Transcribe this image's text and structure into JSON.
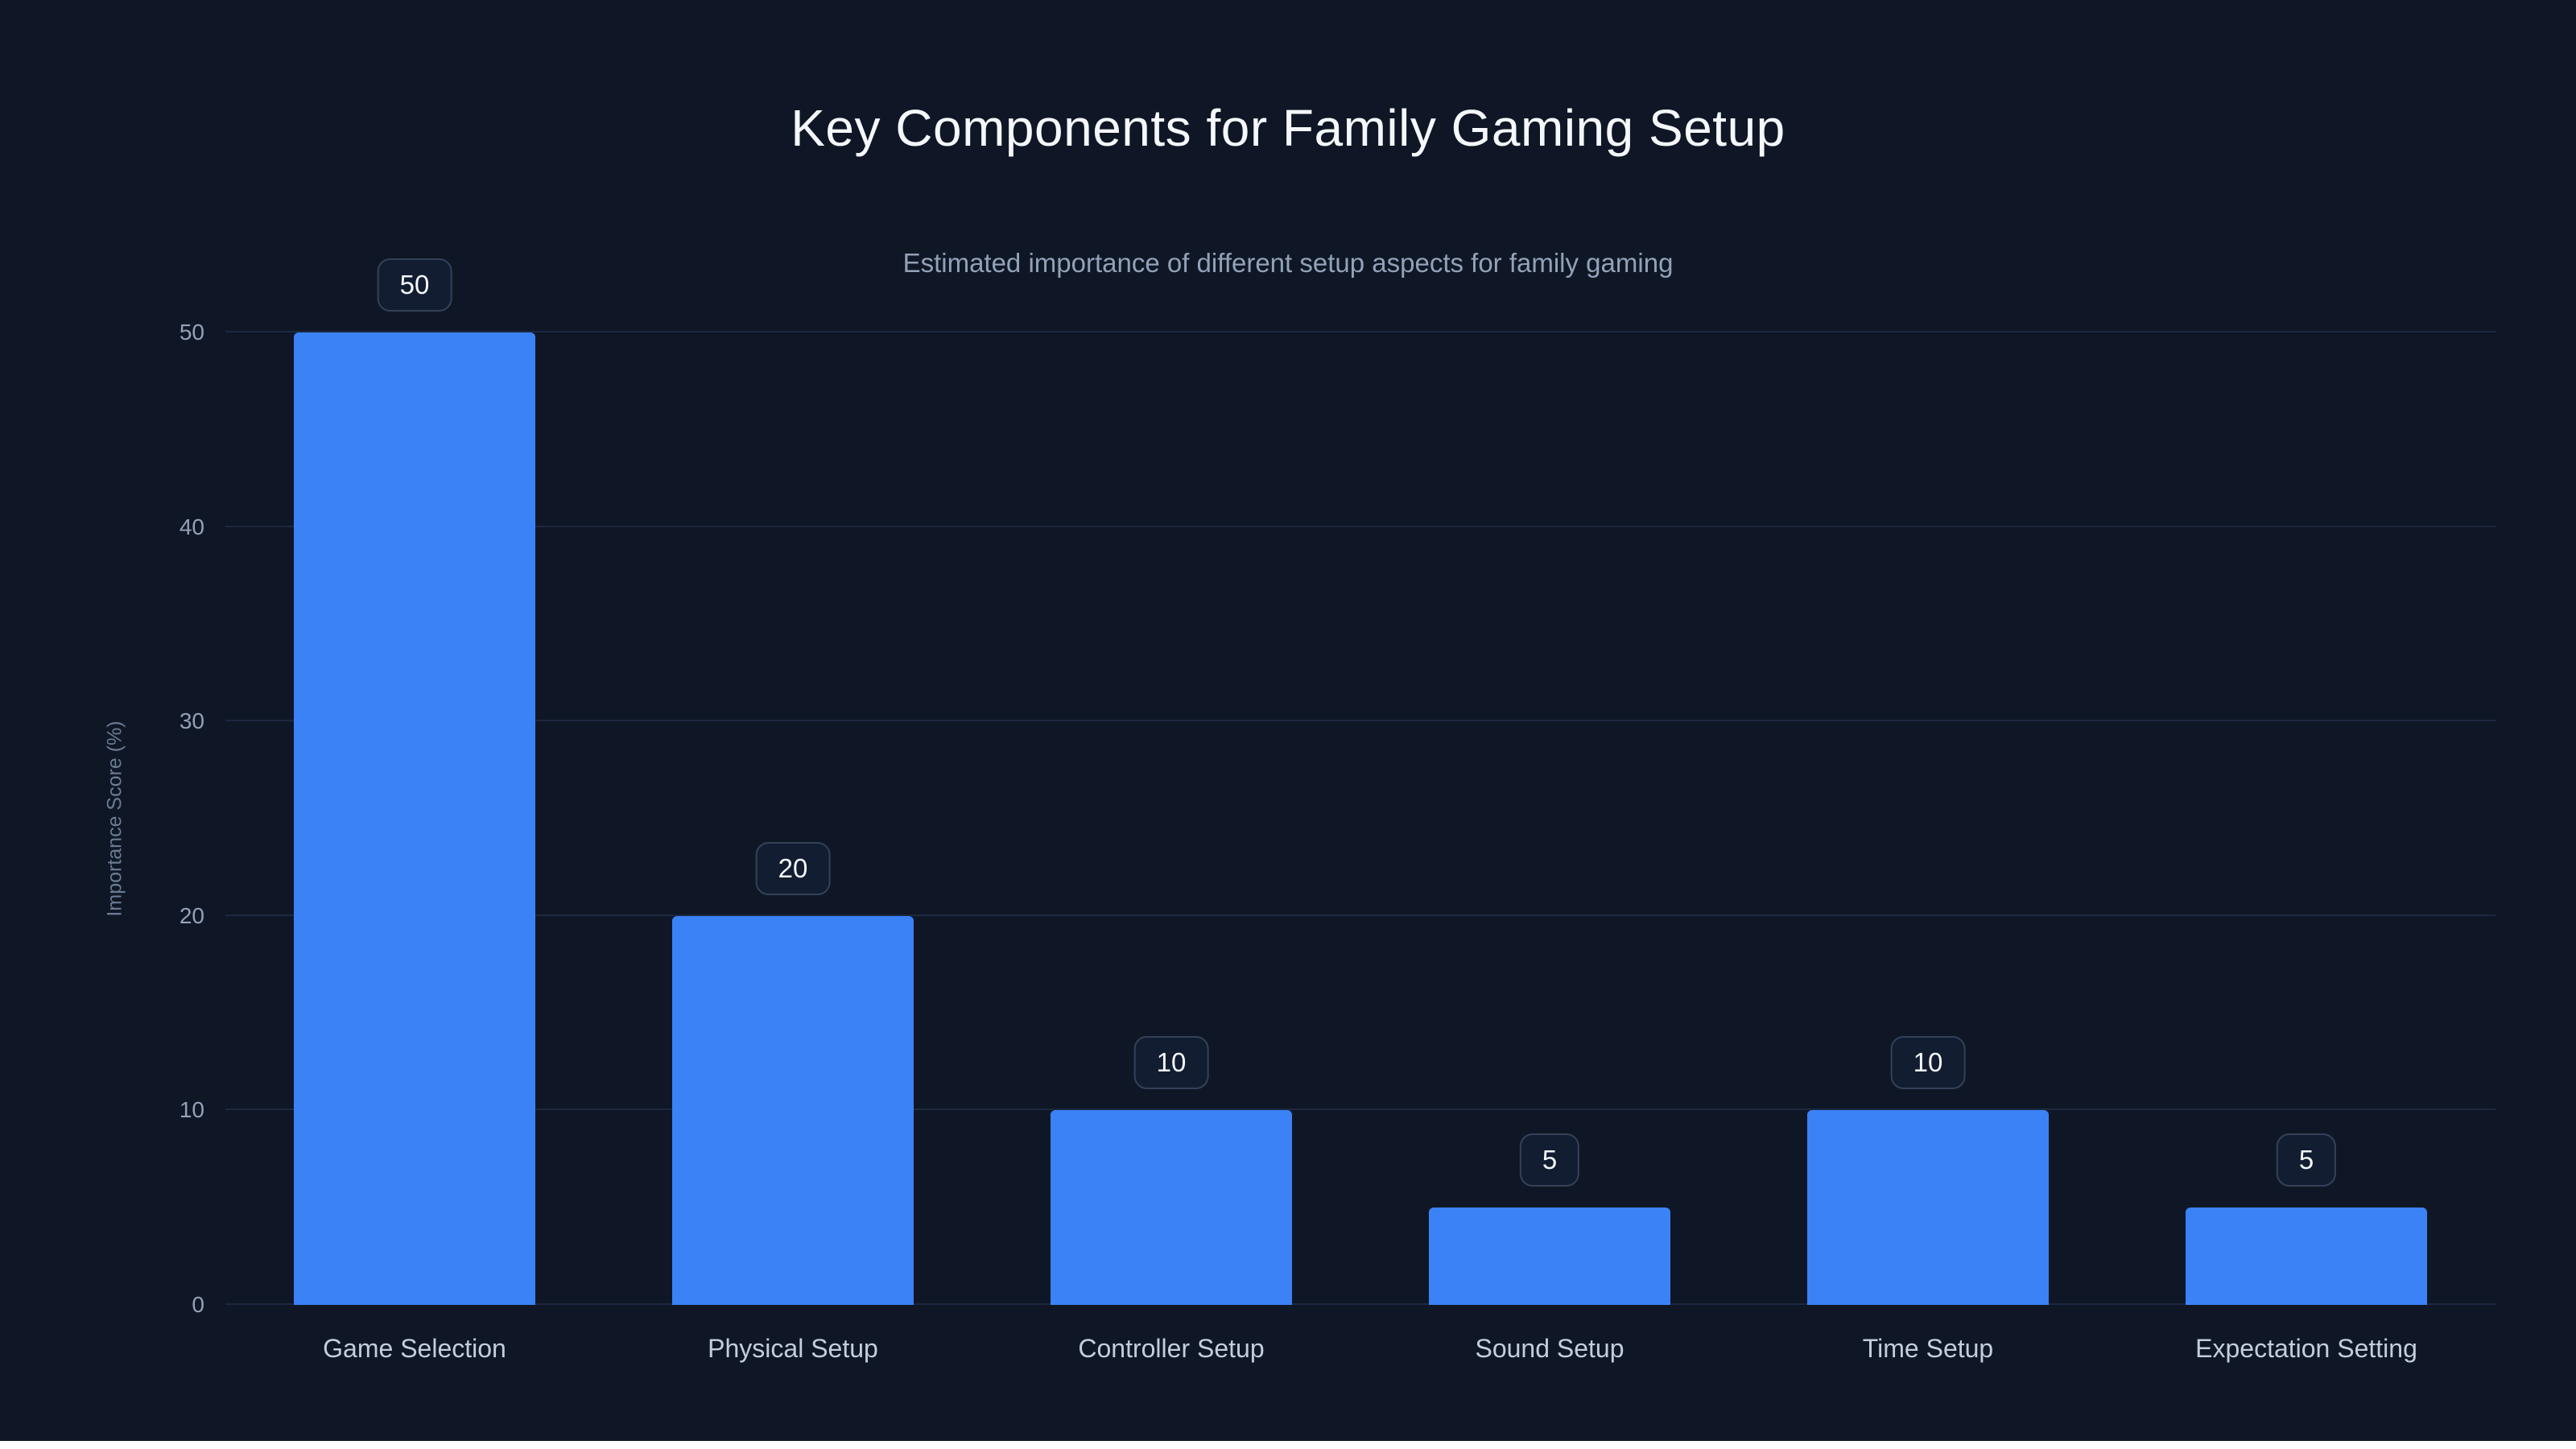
{
  "page": {
    "title": "Key Components for Family Gaming Setup",
    "subtitle": "Estimated importance of different setup aspects for family gaming"
  },
  "chart_data": {
    "type": "bar",
    "title": "Key Components for Family Gaming Setup",
    "subtitle": "Estimated importance of different setup aspects for family gaming",
    "categories": [
      "Game Selection",
      "Physical Setup",
      "Controller Setup",
      "Sound Setup",
      "Time Setup",
      "Expectation Setting"
    ],
    "values": [
      50,
      20,
      10,
      5,
      10,
      5
    ],
    "value_labels": [
      "50",
      "20",
      "10",
      "5",
      "10",
      "5"
    ],
    "xlabel": "",
    "ylabel": "Importance Score (%)",
    "ylim": [
      0,
      50
    ],
    "yticks": [
      0,
      10,
      20,
      30,
      40,
      50
    ],
    "grid": true,
    "legend_position": "none",
    "colors": {
      "background": "#0f1726",
      "bar": "#3b82f6",
      "gridline": "#1d2840",
      "title_text": "#f4f7fb",
      "subtitle_text": "#93a1b8",
      "tick_text": "#93a1b8",
      "category_text": "#c3cddb",
      "badge_border": "#334159",
      "badge_background": "#121d31"
    }
  }
}
